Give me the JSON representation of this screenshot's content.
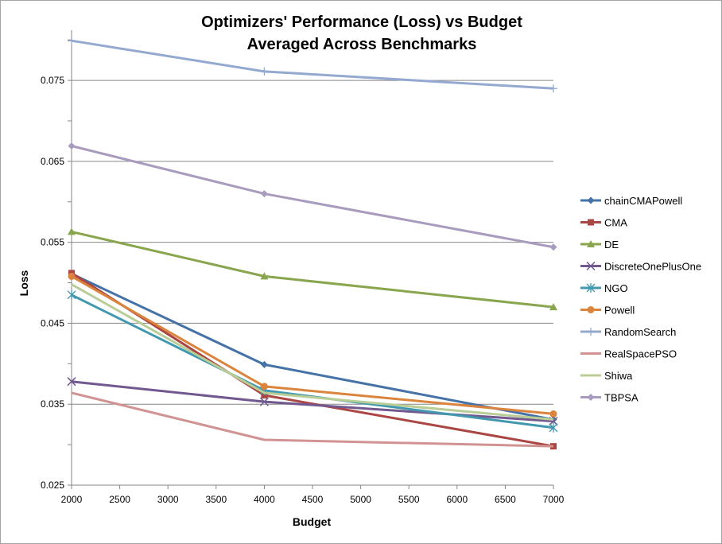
{
  "chart_data": {
    "type": "line",
    "title": "Optimizers' Performance (Loss) vs Budget",
    "subtitle": "Averaged Across Benchmarks",
    "xlabel": "Budget",
    "ylabel": "Loss",
    "x": [
      2000,
      4000,
      7000
    ],
    "xlim": [
      2000,
      7000
    ],
    "xticks": [
      "2000",
      "2500",
      "3000",
      "3500",
      "4000",
      "4500",
      "5000",
      "5500",
      "6000",
      "6500",
      "7000"
    ],
    "ylim": [
      0.025,
      0.081
    ],
    "yticks": [
      "0.025",
      "0.035",
      "0.045",
      "0.055",
      "0.065",
      "0.075"
    ],
    "grid": "horizontal",
    "legend_position": "right",
    "series": [
      {
        "name": "chainCMAPowell",
        "values": [
          0.0511,
          0.0399,
          0.0331
        ],
        "color": "#4572a7",
        "marker": "diamond"
      },
      {
        "name": "CMA",
        "values": [
          0.0512,
          0.0361,
          0.0298
        ],
        "color": "#aa4643",
        "marker": "square"
      },
      {
        "name": "DE",
        "values": [
          0.0563,
          0.0508,
          0.047
        ],
        "color": "#89a54e",
        "marker": "triangle"
      },
      {
        "name": "DiscreteOnePlusOne",
        "values": [
          0.0378,
          0.0353,
          0.0329
        ],
        "color": "#71588f",
        "marker": "x"
      },
      {
        "name": "NGO",
        "values": [
          0.0485,
          0.0367,
          0.0321
        ],
        "color": "#4198af",
        "marker": "star"
      },
      {
        "name": "Powell",
        "values": [
          0.0508,
          0.0372,
          0.0338
        ],
        "color": "#db843d",
        "marker": "circle"
      },
      {
        "name": "RandomSearch",
        "values": [
          0.0799,
          0.0761,
          0.074
        ],
        "color": "#93a9cf",
        "marker": "plus"
      },
      {
        "name": "RealSpacePSO",
        "values": [
          0.0364,
          0.0306,
          0.0298
        ],
        "color": "#d19392",
        "marker": "none"
      },
      {
        "name": "Shiwa",
        "values": [
          0.0498,
          0.0364,
          0.0331
        ],
        "color": "#b9cd96",
        "marker": "none"
      },
      {
        "name": "TBPSA",
        "values": [
          0.0669,
          0.061,
          0.0544
        ],
        "color": "#a99bbd",
        "marker": "diamond"
      }
    ]
  }
}
